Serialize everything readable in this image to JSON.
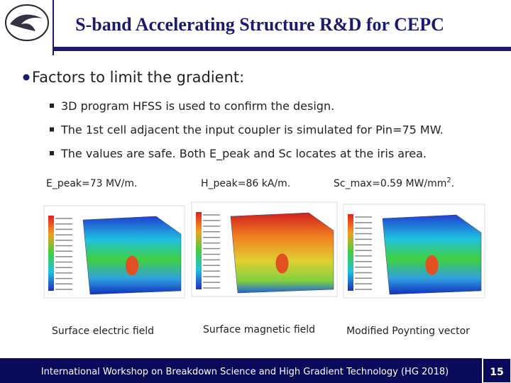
{
  "header": {
    "title": "S-band Accelerating Structure R&D for CEPC"
  },
  "main_bullet": "Factors to limit the gradient:",
  "sub_bullets": [
    "3D program HFSS is used to confirm the design.",
    "The 1st cell adjacent the input coupler is simulated for Pin=75 MW.",
    "The values are safe. Both E_peak and Sc locates at the iris area."
  ],
  "figures": [
    {
      "label": "E_peak=73 MV/m.",
      "caption": "Surface electric field"
    },
    {
      "label": "H_peak=86 kA/m.",
      "caption": "Surface magnetic field"
    },
    {
      "label": {
        "text": "Sc_max=0.59 MW/mm",
        "sup": "2",
        "tail": "."
      },
      "caption": "Modified Poynting vector"
    }
  ],
  "footer": {
    "text": "International Workshop on Breakdown Science and High Gradient Technology (HG 2018)",
    "page": "15"
  }
}
